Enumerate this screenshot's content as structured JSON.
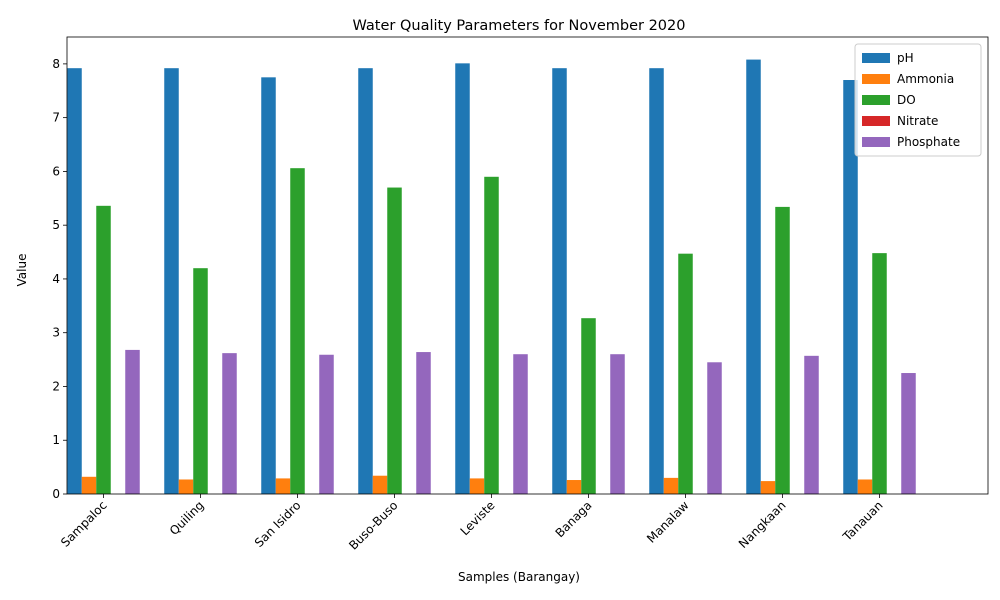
{
  "chart_data": {
    "type": "bar",
    "title": "Water Quality Parameters for November 2020",
    "xlabel": "Samples (Barangay)",
    "ylabel": "Value",
    "ylim": [
      0,
      8.5
    ],
    "yticks": [
      0,
      1,
      2,
      3,
      4,
      5,
      6,
      7,
      8
    ],
    "grid": false,
    "legend_position": "top-right",
    "categories": [
      "Sampaloc",
      "Quiling",
      "San Isidro",
      "Buso-Buso",
      "Leviste",
      "Banaga",
      "Manalaw",
      "Nangkaan",
      "Tanauan"
    ],
    "series": [
      {
        "name": "pH",
        "color": "#1f77b4",
        "values": [
          7.92,
          7.92,
          7.75,
          7.92,
          8.01,
          7.92,
          7.92,
          8.08,
          7.7
        ]
      },
      {
        "name": "Ammonia",
        "color": "#ff7f0e",
        "values": [
          0.32,
          0.27,
          0.29,
          0.34,
          0.29,
          0.26,
          0.3,
          0.24,
          0.27
        ]
      },
      {
        "name": "DO",
        "color": "#2ca02c",
        "values": [
          5.36,
          4.2,
          6.06,
          5.7,
          5.9,
          3.27,
          4.47,
          5.34,
          4.48
        ]
      },
      {
        "name": "Nitrate",
        "color": "#d62728",
        "values": [
          0.0,
          0.0,
          0.0,
          0.0,
          0.0,
          0.0,
          0.0,
          0.0,
          0.0
        ]
      },
      {
        "name": "Phosphate",
        "color": "#9467bd",
        "values": [
          2.68,
          2.62,
          2.59,
          2.64,
          2.6,
          2.6,
          2.45,
          2.57,
          2.25
        ]
      }
    ]
  }
}
